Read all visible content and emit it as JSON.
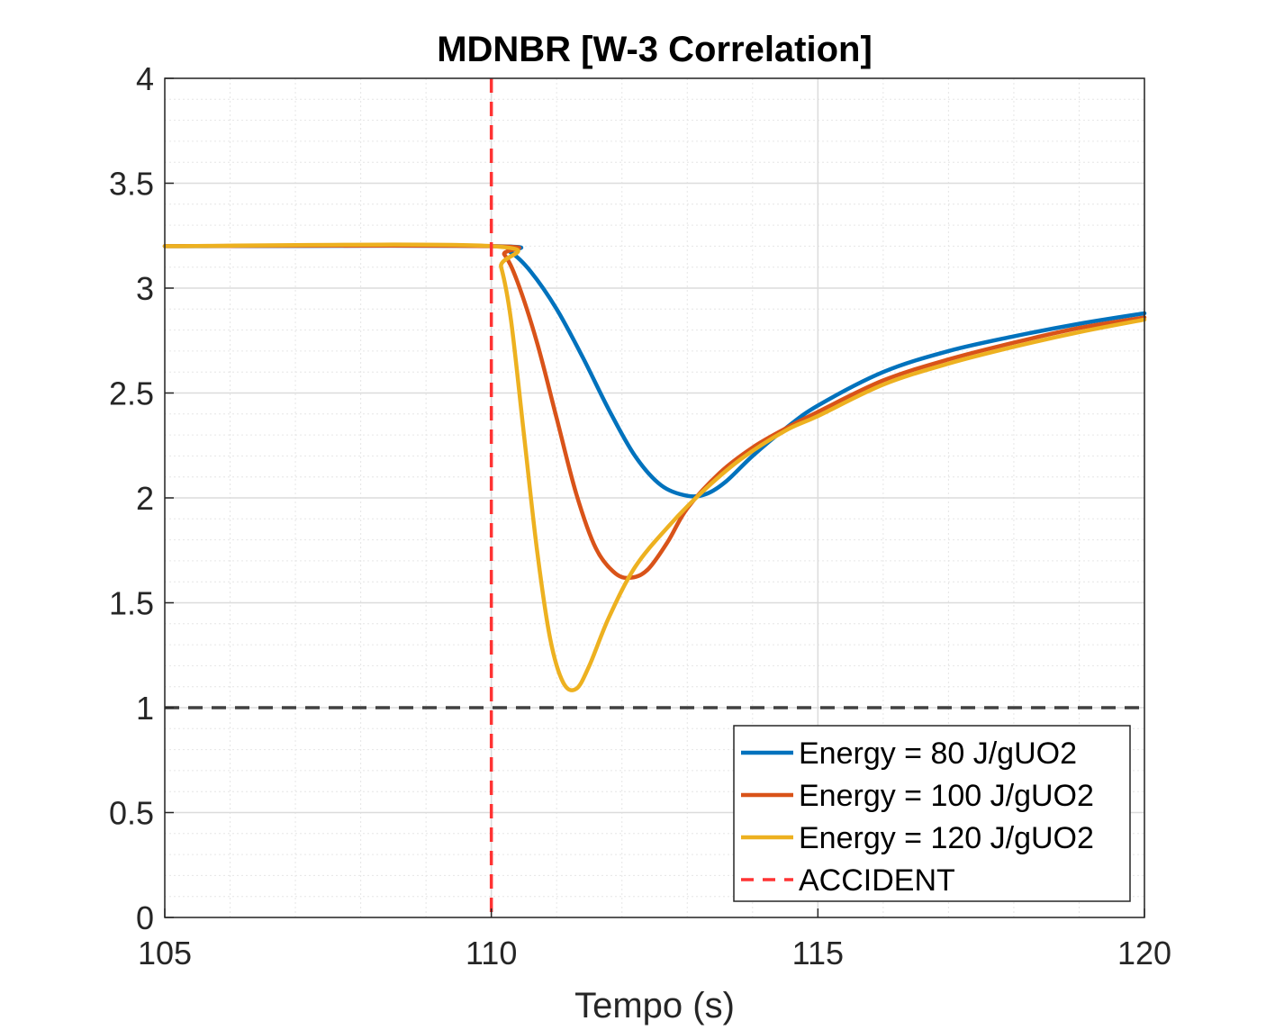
{
  "chart_data": {
    "type": "line",
    "title": "MDNBR [W-3 Correlation]",
    "xlabel": "Tempo (s)",
    "ylabel": "",
    "xlim": [
      105,
      120
    ],
    "ylim": [
      0,
      4
    ],
    "x_ticks": [
      "105",
      "110",
      "115",
      "120"
    ],
    "y_ticks": [
      "0",
      "0.5",
      "1",
      "1.5",
      "2",
      "2.5",
      "3",
      "3.5",
      "4"
    ],
    "grid": true,
    "minor_grid": true,
    "legend_position": "bottom-right",
    "series": [
      {
        "name": "Energy = 80 J/gUO2",
        "color": "#0072BD",
        "style": "solid",
        "x": [
          105,
          110,
          110.3,
          110.6,
          111.0,
          111.4,
          111.8,
          112.2,
          112.6,
          113.0,
          113.3,
          113.6,
          114.0,
          114.5,
          115.0,
          116.0,
          117.0,
          118.0,
          119.0,
          120.0
        ],
        "y": [
          3.2,
          3.2,
          3.17,
          3.08,
          2.9,
          2.67,
          2.42,
          2.2,
          2.06,
          2.01,
          2.02,
          2.08,
          2.2,
          2.33,
          2.44,
          2.6,
          2.7,
          2.77,
          2.83,
          2.88
        ]
      },
      {
        "name": "Energy = 100 J/gUO2",
        "color": "#D95319",
        "style": "solid",
        "x": [
          105,
          110,
          110.2,
          110.4,
          110.7,
          111.0,
          111.3,
          111.6,
          111.9,
          112.15,
          112.4,
          112.7,
          113.0,
          113.5,
          114.0,
          114.5,
          115.0,
          116.0,
          117.0,
          118.0,
          119.0,
          120.0
        ],
        "y": [
          3.2,
          3.2,
          3.16,
          3.03,
          2.74,
          2.38,
          2.02,
          1.76,
          1.64,
          1.62,
          1.66,
          1.79,
          1.95,
          2.12,
          2.24,
          2.33,
          2.41,
          2.56,
          2.66,
          2.74,
          2.81,
          2.86
        ]
      },
      {
        "name": "Energy = 120 J/gUO2",
        "color": "#EDB120",
        "style": "solid",
        "x": [
          105,
          110,
          110.15,
          110.3,
          110.5,
          110.7,
          110.9,
          111.1,
          111.3,
          111.5,
          111.8,
          112.2,
          112.7,
          113.2,
          113.8,
          114.5,
          115.0,
          116.0,
          117.0,
          118.0,
          119.0,
          120.0
        ],
        "y": [
          3.2,
          3.2,
          3.1,
          2.85,
          2.3,
          1.75,
          1.33,
          1.12,
          1.09,
          1.2,
          1.43,
          1.67,
          1.86,
          2.02,
          2.18,
          2.32,
          2.39,
          2.54,
          2.64,
          2.72,
          2.79,
          2.85
        ]
      },
      {
        "name": "ACCIDENT",
        "color": "#FF3333",
        "style": "dashed",
        "x": [
          110,
          110
        ],
        "y": [
          0,
          4
        ]
      }
    ],
    "reference_lines": [
      {
        "axis": "y",
        "value": 1,
        "color": "#404040",
        "style": "dashed"
      }
    ]
  }
}
